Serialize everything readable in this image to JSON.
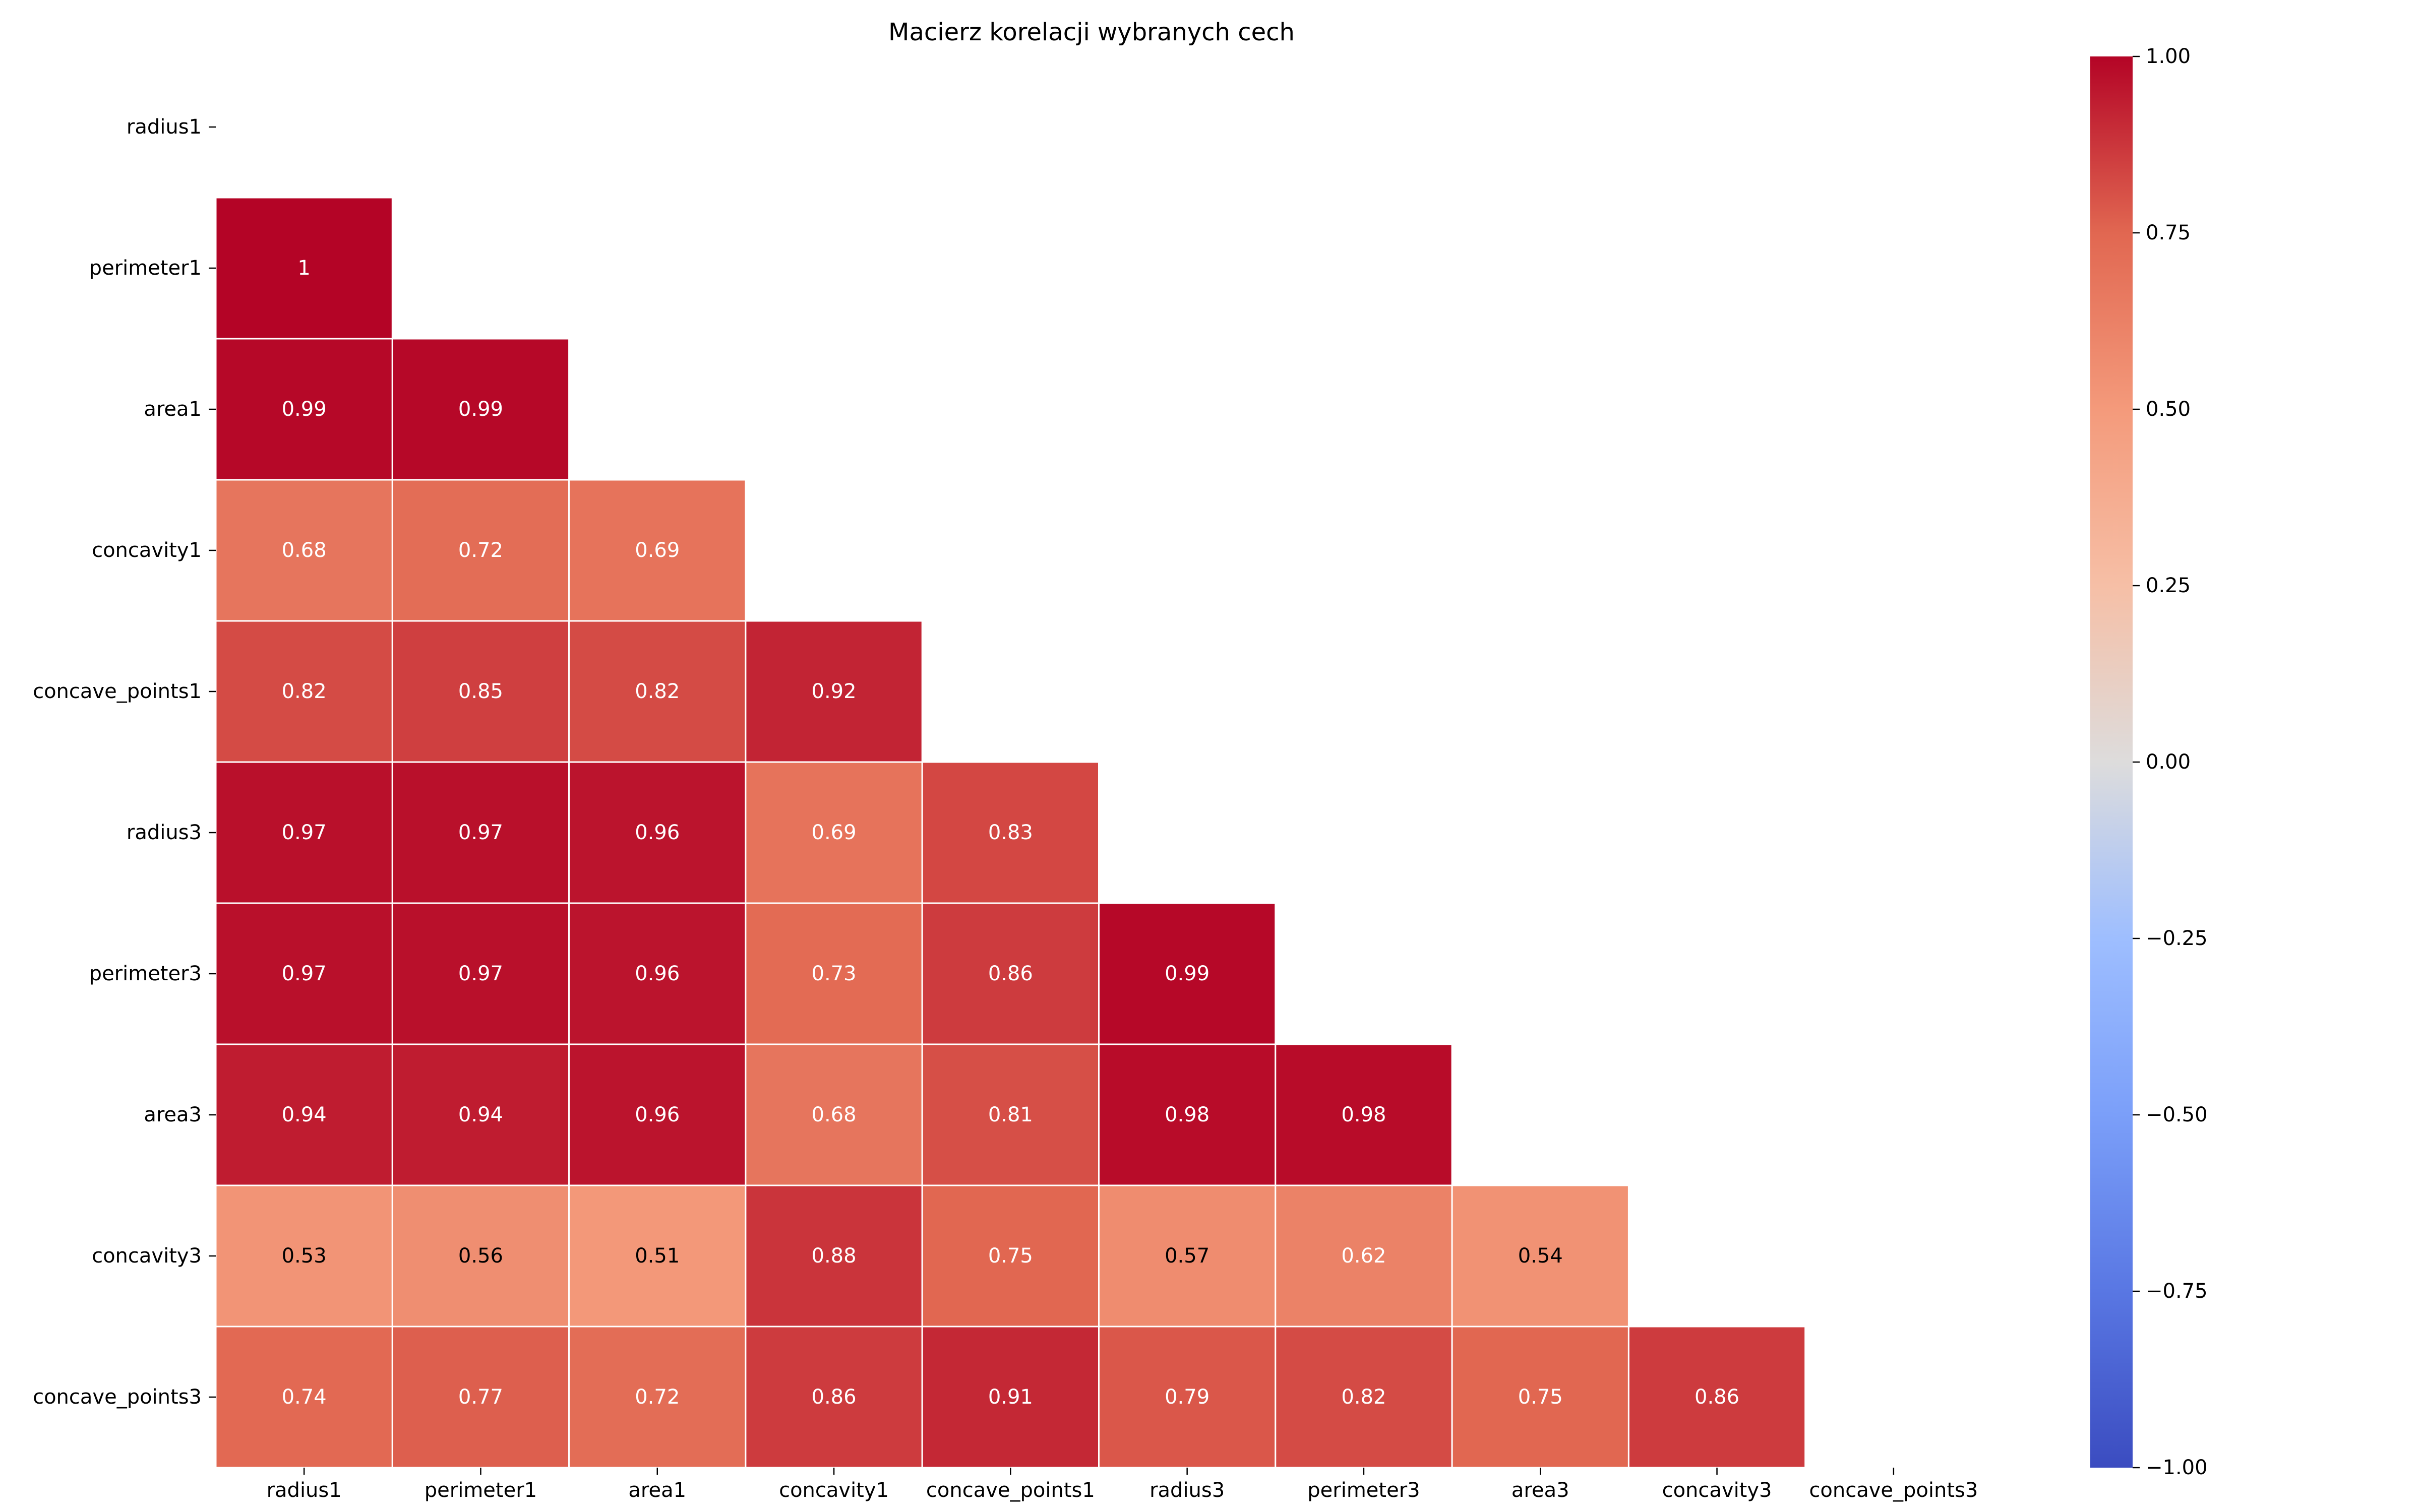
{
  "chart_data": {
    "type": "heatmap",
    "title": "Macierz korelacji wybranych cech",
    "row_labels": [
      "radius1",
      "perimeter1",
      "area1",
      "concavity1",
      "concave_points1",
      "radius3",
      "perimeter3",
      "area3",
      "concavity3",
      "concave_points3"
    ],
    "col_labels": [
      "radius1",
      "perimeter1",
      "area1",
      "concavity1",
      "concave_points1",
      "radius3",
      "perimeter3",
      "area3",
      "concavity3",
      "concave_points3"
    ],
    "mask": "upper-triangle-including-diagonal",
    "values": [
      [
        null,
        null,
        null,
        null,
        null,
        null,
        null,
        null,
        null,
        null
      ],
      [
        1,
        null,
        null,
        null,
        null,
        null,
        null,
        null,
        null,
        null
      ],
      [
        0.99,
        0.99,
        null,
        null,
        null,
        null,
        null,
        null,
        null,
        null
      ],
      [
        0.68,
        0.72,
        0.69,
        null,
        null,
        null,
        null,
        null,
        null,
        null
      ],
      [
        0.82,
        0.85,
        0.82,
        0.92,
        null,
        null,
        null,
        null,
        null,
        null
      ],
      [
        0.97,
        0.97,
        0.96,
        0.69,
        0.83,
        null,
        null,
        null,
        null,
        null
      ],
      [
        0.97,
        0.97,
        0.96,
        0.73,
        0.86,
        0.99,
        null,
        null,
        null,
        null
      ],
      [
        0.94,
        0.94,
        0.96,
        0.68,
        0.81,
        0.98,
        0.98,
        null,
        null,
        null
      ],
      [
        0.53,
        0.56,
        0.51,
        0.88,
        0.75,
        0.57,
        0.62,
        0.54,
        null,
        null
      ],
      [
        0.74,
        0.77,
        0.72,
        0.86,
        0.91,
        0.79,
        0.82,
        0.75,
        0.86,
        null
      ]
    ],
    "colormap": "coolwarm",
    "vmin": -1,
    "vmax": 1,
    "colorbar_ticks": [
      "1.00",
      "0.75",
      "0.50",
      "0.25",
      "0.00",
      "−0.25",
      "−0.50",
      "−0.75",
      "−1.00"
    ],
    "grid": false,
    "legend": "colorbar-right"
  }
}
